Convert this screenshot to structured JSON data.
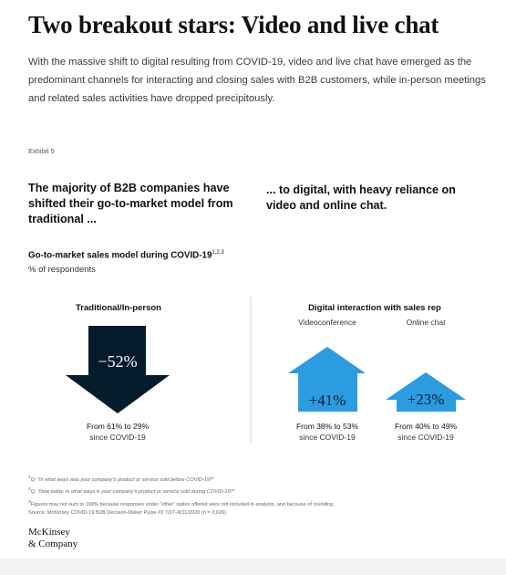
{
  "article": {
    "headline": "Two breakout stars: Video and live chat",
    "intro": "With the massive shift to digital resulting from COVID-19, video and live chat have emerged as the predominant channels for interacting and closing sales with B2B customers, while in-person meetings and related sales activities have dropped precipitously."
  },
  "exhibit": {
    "label": "Exhibit 5",
    "left_heading": "The majority of B2B companies have shifted their go-to-market model from traditional ...",
    "right_heading": "... to digital, with heavy reliance on video and online chat.",
    "chart_title": "Go-to-market sales model during COVID-19",
    "chart_title_sup": "1,2,3",
    "chart_unit": "% of respondents"
  },
  "chart_data": {
    "type": "bar",
    "title": "Go-to-market sales model during COVID-19",
    "unit": "% of respondents",
    "groups": [
      {
        "name": "Traditional/In-person",
        "items": [
          {
            "category": "",
            "label": "−52%",
            "change": -52,
            "from": 61,
            "to": 29,
            "caption_line1": "From 61% to 29%",
            "caption_line2": "since COVID-19",
            "direction": "down",
            "color": "#051c2c"
          }
        ]
      },
      {
        "name": "Digital interaction with sales rep",
        "items": [
          {
            "category": "Videoconference",
            "label": "+41%",
            "change": 41,
            "from": 38,
            "to": 53,
            "caption_line1": "From 38% to 53%",
            "caption_line2": "since COVID-19",
            "direction": "up",
            "color": "#2b9ce0"
          },
          {
            "category": "Online chat",
            "label": "+23%",
            "change": 23,
            "from": 40,
            "to": 49,
            "caption_line1": "From 40% to 49%",
            "caption_line2": "since COVID-19",
            "direction": "up",
            "color": "#2b9ce0"
          }
        ]
      }
    ]
  },
  "footnotes": {
    "q1_prefix": "Q: ",
    "q1_text": "“In what ways was your company’s product or service sold before COVID-19?”",
    "q2_prefix": "Q: ",
    "q2_text": "“Now today, in what ways is your company’s product or service sold during COVID-19?”",
    "note3": "Figures may not sum to 100% because responses under “other” option offered were not included in analysis, and because of rounding.",
    "source": "Source: McKinsey COVID-19 B2B Decision-Maker Pulse #3 7/27–8/11/2020 (n = 3,626)"
  },
  "brand": {
    "line1": "McKinsey",
    "line2": "& Company"
  }
}
